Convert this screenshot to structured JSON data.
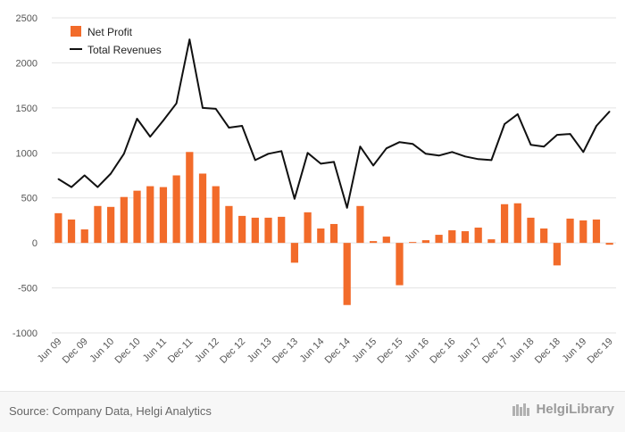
{
  "chart_data": {
    "type": "bar+line",
    "categories": [
      "Jun 09",
      "Sep 09",
      "Dec 09",
      "Mar 10",
      "Jun 10",
      "Sep 10",
      "Dec 10",
      "Mar 11",
      "Jun 11",
      "Sep 11",
      "Dec 11",
      "Mar 12",
      "Jun 12",
      "Sep 12",
      "Dec 12",
      "Mar 13",
      "Jun 13",
      "Sep 13",
      "Dec 13",
      "Mar 14",
      "Jun 14",
      "Sep 14",
      "Dec 14",
      "Mar 15",
      "Jun 15",
      "Sep 15",
      "Dec 15",
      "Mar 16",
      "Jun 16",
      "Sep 16",
      "Dec 16",
      "Mar 17",
      "Jun 17",
      "Sep 17",
      "Dec 17",
      "Mar 18",
      "Jun 18",
      "Sep 18",
      "Dec 18",
      "Mar 19",
      "Jun 19",
      "Sep 19",
      "Dec 19"
    ],
    "tick_labels": [
      "Jun 09",
      "Dec 09",
      "Jun 10",
      "Dec 10",
      "Jun 11",
      "Dec 11",
      "Jun 12",
      "Dec 12",
      "Jun 13",
      "Dec 13",
      "Jun 14",
      "Dec 14",
      "Jun 15",
      "Dec 15",
      "Jun 16",
      "Dec 16",
      "Jun 17",
      "Dec 17",
      "Jun 18",
      "Dec 18",
      "Jun 19",
      "Dec 19"
    ],
    "series": [
      {
        "name": "Net Profit",
        "type": "bar",
        "color": "#f26b2a",
        "values": [
          330,
          260,
          150,
          410,
          400,
          510,
          580,
          630,
          620,
          750,
          1010,
          770,
          630,
          410,
          300,
          280,
          280,
          290,
          -220,
          340,
          160,
          210,
          -690,
          410,
          20,
          70,
          -470,
          10,
          30,
          90,
          140,
          130,
          170,
          40,
          430,
          440,
          280,
          160,
          -250,
          270,
          250,
          260,
          -20
        ]
      },
      {
        "name": "Total Revenues",
        "type": "line",
        "color": "#111111",
        "values": [
          710,
          620,
          750,
          620,
          770,
          990,
          1380,
          1180,
          1360,
          1550,
          2260,
          1500,
          1490,
          1280,
          1300,
          920,
          990,
          1020,
          490,
          1000,
          880,
          900,
          390,
          1070,
          860,
          1050,
          1120,
          1100,
          990,
          970,
          1010,
          960,
          930,
          920,
          1320,
          1430,
          1090,
          1070,
          1200,
          1210,
          1010,
          1300,
          1460
        ]
      }
    ],
    "y_ticks": [
      -1000,
      -500,
      0,
      500,
      1000,
      1500,
      2000,
      2500
    ],
    "ylim": [
      -1000,
      2500
    ],
    "grid": true,
    "legend_position": "top-left",
    "title": "",
    "xlabel": "",
    "ylabel": ""
  },
  "footer": {
    "source": "Source: Company Data, Helgi Analytics",
    "brand": "HelgiLibrary"
  }
}
